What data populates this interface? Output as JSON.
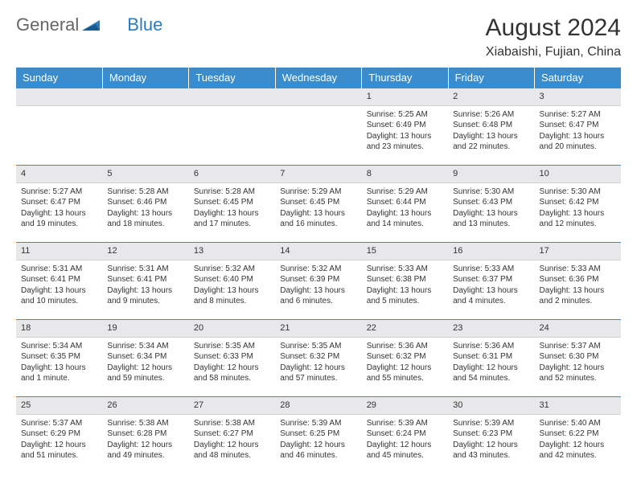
{
  "brand": {
    "part1": "General",
    "part2": "Blue"
  },
  "title": "August 2024",
  "location": "Xiabaishi, Fujian, China",
  "colors": {
    "header_bg": "#3b8ccc",
    "header_text": "#ffffff",
    "daynum_bg": "#e8e8ea",
    "border": "#3b8ccc",
    "logo_blue": "#2b7bbf",
    "logo_gray": "#666666"
  },
  "day_labels": [
    "Sunday",
    "Monday",
    "Tuesday",
    "Wednesday",
    "Thursday",
    "Friday",
    "Saturday"
  ],
  "weeks": [
    [
      null,
      null,
      null,
      null,
      {
        "n": "1",
        "sr": "5:25 AM",
        "ss": "6:49 PM",
        "dl": "13 hours and 23 minutes."
      },
      {
        "n": "2",
        "sr": "5:26 AM",
        "ss": "6:48 PM",
        "dl": "13 hours and 22 minutes."
      },
      {
        "n": "3",
        "sr": "5:27 AM",
        "ss": "6:47 PM",
        "dl": "13 hours and 20 minutes."
      }
    ],
    [
      {
        "n": "4",
        "sr": "5:27 AM",
        "ss": "6:47 PM",
        "dl": "13 hours and 19 minutes."
      },
      {
        "n": "5",
        "sr": "5:28 AM",
        "ss": "6:46 PM",
        "dl": "13 hours and 18 minutes."
      },
      {
        "n": "6",
        "sr": "5:28 AM",
        "ss": "6:45 PM",
        "dl": "13 hours and 17 minutes."
      },
      {
        "n": "7",
        "sr": "5:29 AM",
        "ss": "6:45 PM",
        "dl": "13 hours and 16 minutes."
      },
      {
        "n": "8",
        "sr": "5:29 AM",
        "ss": "6:44 PM",
        "dl": "13 hours and 14 minutes."
      },
      {
        "n": "9",
        "sr": "5:30 AM",
        "ss": "6:43 PM",
        "dl": "13 hours and 13 minutes."
      },
      {
        "n": "10",
        "sr": "5:30 AM",
        "ss": "6:42 PM",
        "dl": "13 hours and 12 minutes."
      }
    ],
    [
      {
        "n": "11",
        "sr": "5:31 AM",
        "ss": "6:41 PM",
        "dl": "13 hours and 10 minutes."
      },
      {
        "n": "12",
        "sr": "5:31 AM",
        "ss": "6:41 PM",
        "dl": "13 hours and 9 minutes."
      },
      {
        "n": "13",
        "sr": "5:32 AM",
        "ss": "6:40 PM",
        "dl": "13 hours and 8 minutes."
      },
      {
        "n": "14",
        "sr": "5:32 AM",
        "ss": "6:39 PM",
        "dl": "13 hours and 6 minutes."
      },
      {
        "n": "15",
        "sr": "5:33 AM",
        "ss": "6:38 PM",
        "dl": "13 hours and 5 minutes."
      },
      {
        "n": "16",
        "sr": "5:33 AM",
        "ss": "6:37 PM",
        "dl": "13 hours and 4 minutes."
      },
      {
        "n": "17",
        "sr": "5:33 AM",
        "ss": "6:36 PM",
        "dl": "13 hours and 2 minutes."
      }
    ],
    [
      {
        "n": "18",
        "sr": "5:34 AM",
        "ss": "6:35 PM",
        "dl": "13 hours and 1 minute."
      },
      {
        "n": "19",
        "sr": "5:34 AM",
        "ss": "6:34 PM",
        "dl": "12 hours and 59 minutes."
      },
      {
        "n": "20",
        "sr": "5:35 AM",
        "ss": "6:33 PM",
        "dl": "12 hours and 58 minutes."
      },
      {
        "n": "21",
        "sr": "5:35 AM",
        "ss": "6:32 PM",
        "dl": "12 hours and 57 minutes."
      },
      {
        "n": "22",
        "sr": "5:36 AM",
        "ss": "6:32 PM",
        "dl": "12 hours and 55 minutes."
      },
      {
        "n": "23",
        "sr": "5:36 AM",
        "ss": "6:31 PM",
        "dl": "12 hours and 54 minutes."
      },
      {
        "n": "24",
        "sr": "5:37 AM",
        "ss": "6:30 PM",
        "dl": "12 hours and 52 minutes."
      }
    ],
    [
      {
        "n": "25",
        "sr": "5:37 AM",
        "ss": "6:29 PM",
        "dl": "12 hours and 51 minutes."
      },
      {
        "n": "26",
        "sr": "5:38 AM",
        "ss": "6:28 PM",
        "dl": "12 hours and 49 minutes."
      },
      {
        "n": "27",
        "sr": "5:38 AM",
        "ss": "6:27 PM",
        "dl": "12 hours and 48 minutes."
      },
      {
        "n": "28",
        "sr": "5:39 AM",
        "ss": "6:25 PM",
        "dl": "12 hours and 46 minutes."
      },
      {
        "n": "29",
        "sr": "5:39 AM",
        "ss": "6:24 PM",
        "dl": "12 hours and 45 minutes."
      },
      {
        "n": "30",
        "sr": "5:39 AM",
        "ss": "6:23 PM",
        "dl": "12 hours and 43 minutes."
      },
      {
        "n": "31",
        "sr": "5:40 AM",
        "ss": "6:22 PM",
        "dl": "12 hours and 42 minutes."
      }
    ]
  ],
  "field_labels": {
    "sunrise": "Sunrise: ",
    "sunset": "Sunset: ",
    "daylight": "Daylight: "
  }
}
